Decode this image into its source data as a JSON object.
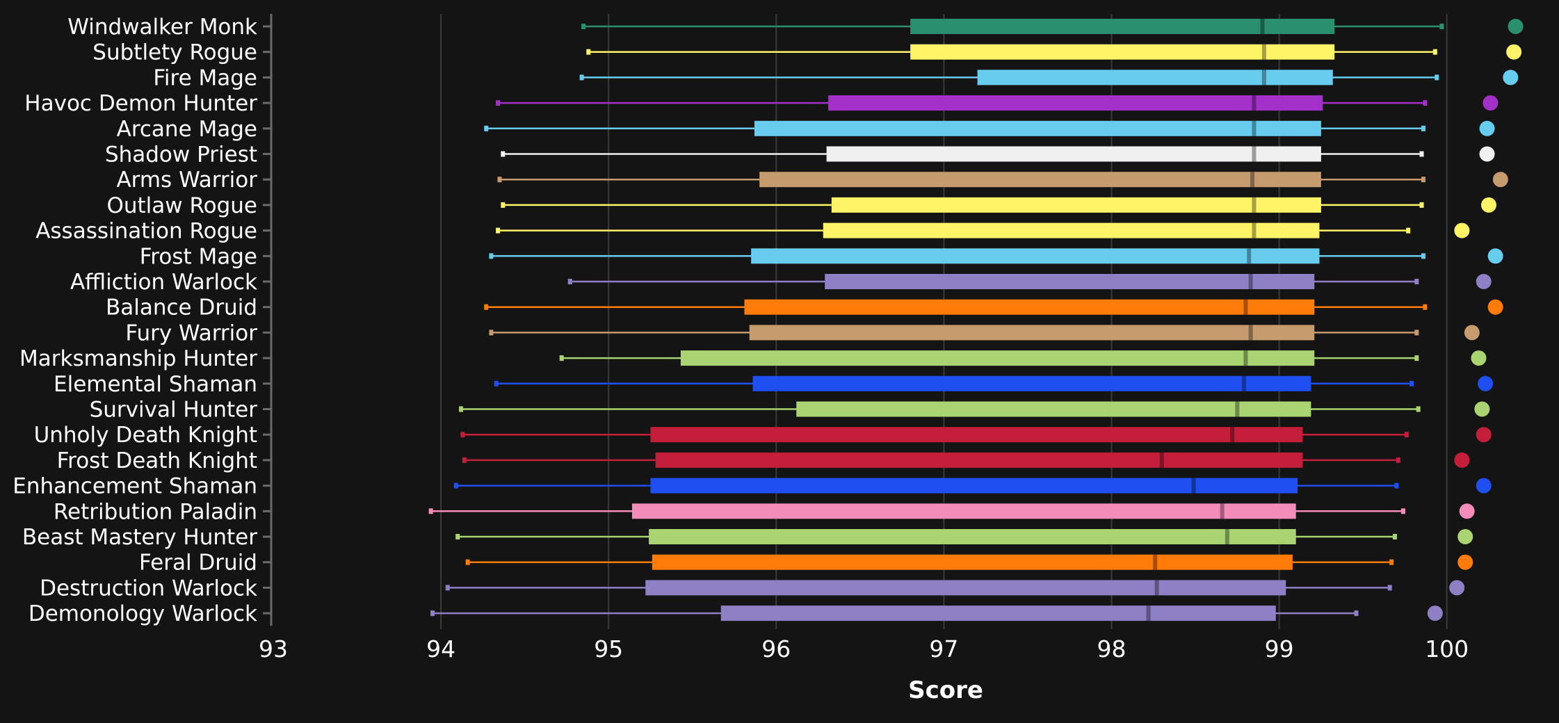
{
  "chart_data": {
    "type": "box",
    "title": "",
    "xlabel": "Score",
    "ylabel": "",
    "xlim": [
      93,
      100.6
    ],
    "xticks": [
      93,
      94,
      95,
      96,
      97,
      98,
      99,
      100
    ],
    "grid": true,
    "legend": "none",
    "categories": [
      {
        "name": "Windwalker Monk",
        "color": "#2a8f6f",
        "whisker_low": 94.85,
        "q1": 96.8,
        "median": 98.9,
        "q3": 99.33,
        "whisker_high": 99.97,
        "dot": 100.41
      },
      {
        "name": "Subtlety Rogue",
        "color": "#fff468",
        "whisker_low": 94.88,
        "q1": 96.8,
        "median": 98.91,
        "q3": 99.33,
        "whisker_high": 99.93,
        "dot": 100.4
      },
      {
        "name": "Fire Mage",
        "color": "#68ccef",
        "whisker_low": 94.84,
        "q1": 97.2,
        "median": 98.91,
        "q3": 99.32,
        "whisker_high": 99.94,
        "dot": 100.38
      },
      {
        "name": "Havoc Demon Hunter",
        "color": "#a330c9",
        "whisker_low": 94.34,
        "q1": 96.31,
        "median": 98.85,
        "q3": 99.26,
        "whisker_high": 99.87,
        "dot": 100.26
      },
      {
        "name": "Arcane Mage",
        "color": "#68ccef",
        "whisker_low": 94.27,
        "q1": 95.87,
        "median": 98.85,
        "q3": 99.25,
        "whisker_high": 99.86,
        "dot": 100.24
      },
      {
        "name": "Shadow Priest",
        "color": "#f0f0f0",
        "whisker_low": 94.37,
        "q1": 96.3,
        "median": 98.85,
        "q3": 99.25,
        "whisker_high": 99.85,
        "dot": 100.24
      },
      {
        "name": "Arms Warrior",
        "color": "#c69b6d",
        "whisker_low": 94.35,
        "q1": 95.9,
        "median": 98.84,
        "q3": 99.25,
        "whisker_high": 99.86,
        "dot": 100.32
      },
      {
        "name": "Outlaw Rogue",
        "color": "#fff468",
        "whisker_low": 94.37,
        "q1": 96.33,
        "median": 98.85,
        "q3": 99.25,
        "whisker_high": 99.85,
        "dot": 100.25
      },
      {
        "name": "Assassination Rogue",
        "color": "#fff468",
        "whisker_low": 94.34,
        "q1": 96.28,
        "median": 98.85,
        "q3": 99.24,
        "whisker_high": 99.77,
        "dot": 100.09
      },
      {
        "name": "Frost Mage",
        "color": "#68ccef",
        "whisker_low": 94.3,
        "q1": 95.85,
        "median": 98.82,
        "q3": 99.24,
        "whisker_high": 99.86,
        "dot": 100.29
      },
      {
        "name": "Affliction Warlock",
        "color": "#8f80c6",
        "whisker_low": 94.77,
        "q1": 96.29,
        "median": 98.83,
        "q3": 99.21,
        "whisker_high": 99.82,
        "dot": 100.22
      },
      {
        "name": "Balance Druid",
        "color": "#ff7c0a",
        "whisker_low": 94.27,
        "q1": 95.81,
        "median": 98.8,
        "q3": 99.21,
        "whisker_high": 99.87,
        "dot": 100.29
      },
      {
        "name": "Fury Warrior",
        "color": "#c69b6d",
        "whisker_low": 94.3,
        "q1": 95.84,
        "median": 98.83,
        "q3": 99.21,
        "whisker_high": 99.82,
        "dot": 100.15
      },
      {
        "name": "Marksmanship Hunter",
        "color": "#aad372",
        "whisker_low": 94.72,
        "q1": 95.43,
        "median": 98.8,
        "q3": 99.21,
        "whisker_high": 99.82,
        "dot": 100.19
      },
      {
        "name": "Elemental Shaman",
        "color": "#1f4ff0",
        "whisker_low": 94.33,
        "q1": 95.86,
        "median": 98.79,
        "q3": 99.19,
        "whisker_high": 99.79,
        "dot": 100.23
      },
      {
        "name": "Survival Hunter",
        "color": "#aad372",
        "whisker_low": 94.12,
        "q1": 96.12,
        "median": 98.75,
        "q3": 99.19,
        "whisker_high": 99.83,
        "dot": 100.21
      },
      {
        "name": "Unholy Death Knight",
        "color": "#c41e3a",
        "whisker_low": 94.13,
        "q1": 95.25,
        "median": 98.72,
        "q3": 99.14,
        "whisker_high": 99.76,
        "dot": 100.22
      },
      {
        "name": "Frost Death Knight",
        "color": "#c41e3a",
        "whisker_low": 94.14,
        "q1": 95.28,
        "median": 98.3,
        "q3": 99.14,
        "whisker_high": 99.71,
        "dot": 100.09
      },
      {
        "name": "Enhancement Shaman",
        "color": "#1f4ff0",
        "whisker_low": 94.09,
        "q1": 95.25,
        "median": 98.49,
        "q3": 99.11,
        "whisker_high": 99.7,
        "dot": 100.22
      },
      {
        "name": "Retribution Paladin",
        "color": "#f48cba",
        "whisker_low": 93.94,
        "q1": 95.14,
        "median": 98.66,
        "q3": 99.1,
        "whisker_high": 99.74,
        "dot": 100.12
      },
      {
        "name": "Beast Mastery Hunter",
        "color": "#aad372",
        "whisker_low": 94.1,
        "q1": 95.24,
        "median": 98.69,
        "q3": 99.1,
        "whisker_high": 99.69,
        "dot": 100.11
      },
      {
        "name": "Feral Druid",
        "color": "#ff7c0a",
        "whisker_low": 94.16,
        "q1": 95.26,
        "median": 98.26,
        "q3": 99.08,
        "whisker_high": 99.67,
        "dot": 100.11
      },
      {
        "name": "Destruction Warlock",
        "color": "#8f80c6",
        "whisker_low": 94.04,
        "q1": 95.22,
        "median": 98.27,
        "q3": 99.04,
        "whisker_high": 99.66,
        "dot": 100.06
      },
      {
        "name": "Demonology Warlock",
        "color": "#8f80c6",
        "whisker_low": 93.95,
        "q1": 95.67,
        "median": 98.22,
        "q3": 98.98,
        "whisker_high": 99.46,
        "dot": 99.93
      }
    ]
  }
}
